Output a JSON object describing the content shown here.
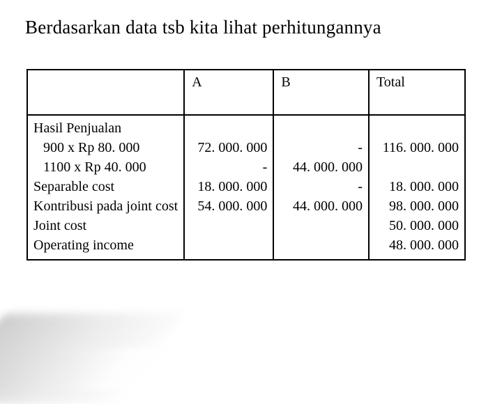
{
  "title": "Berdasarkan data tsb kita lihat perhitungannya",
  "table": {
    "columns": [
      "",
      "A",
      "B",
      "Total"
    ],
    "rowLabels": [
      {
        "text": "Hasil Penjualan",
        "indent": false
      },
      {
        "text": "900 x Rp 80. 000",
        "indent": true
      },
      {
        "text": "1100 x Rp 40. 000",
        "indent": true
      },
      {
        "text": "Separable cost",
        "indent": false
      },
      {
        "text": "Kontribusi pada joint cost",
        "indent": false
      },
      {
        "text": "Joint cost",
        "indent": false
      },
      {
        "text": "Operating income",
        "indent": false
      }
    ],
    "colA": [
      "",
      "72. 000. 000",
      "-",
      "18. 000. 000",
      "54. 000. 000",
      "",
      ""
    ],
    "colB": [
      "",
      "-",
      "44. 000. 000",
      "-",
      "44. 000. 000",
      "",
      ""
    ],
    "colTotal": [
      "",
      "116. 000. 000",
      "",
      "18. 000. 000",
      "98. 000. 000",
      "50. 000. 000",
      "48. 000. 000"
    ],
    "border_color": "#000000",
    "background_color": "#ffffff",
    "font_family": "Times New Roman",
    "title_fontsize": 27,
    "cell_fontsize": 20
  }
}
